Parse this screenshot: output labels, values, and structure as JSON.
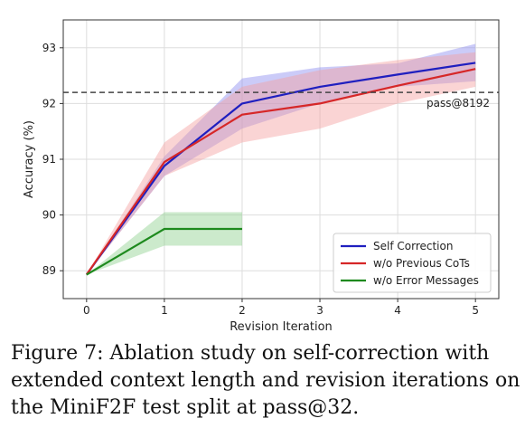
{
  "chart_data": {
    "type": "line",
    "xlabel": "Revision Iteration",
    "ylabel": "Accuracy (%)",
    "xlim": [
      -0.3,
      5.3
    ],
    "ylim": [
      88.5,
      93.5
    ],
    "xticks": [
      "0",
      "1",
      "2",
      "3",
      "4",
      "5"
    ],
    "yticks": [
      "89",
      "90",
      "91",
      "92",
      "93"
    ],
    "grid": true,
    "legend_position": "bottom-right",
    "reference_line": {
      "y": 92.2,
      "label": "pass@8192",
      "style": "dashed",
      "color": "#444444"
    },
    "series": [
      {
        "name": "Self Correction",
        "color": "#1f1fbf",
        "band_color": "#8c8cf0",
        "x": [
          0,
          1,
          2,
          3,
          4,
          5
        ],
        "values": [
          88.93,
          90.88,
          92.0,
          92.3,
          92.52,
          92.73
        ],
        "upper": [
          88.93,
          91.05,
          92.45,
          92.65,
          92.72,
          93.07
        ],
        "lower": [
          88.93,
          90.7,
          91.55,
          92.0,
          92.3,
          92.4
        ]
      },
      {
        "name": "w/o Previous CoTs",
        "color": "#d62728",
        "band_color": "#f4a0a0",
        "x": [
          0,
          1,
          2,
          3,
          4,
          5
        ],
        "values": [
          88.93,
          90.95,
          91.8,
          92.0,
          92.32,
          92.62
        ],
        "upper": [
          88.93,
          91.3,
          92.3,
          92.6,
          92.78,
          92.92
        ],
        "lower": [
          88.93,
          90.7,
          91.3,
          91.55,
          92.0,
          92.3
        ]
      },
      {
        "name": "w/o Error Messages",
        "color": "#1e8a1e",
        "band_color": "#8fd18f",
        "x": [
          0,
          1,
          2
        ],
        "values": [
          88.93,
          89.75,
          89.75
        ],
        "upper": [
          88.93,
          90.05,
          90.05
        ],
        "lower": [
          88.93,
          89.45,
          89.45
        ]
      }
    ]
  },
  "caption": "Figure 7: Ablation study on self-correction with extended context length and revision iterations on the MiniF2F test split at pass@32."
}
